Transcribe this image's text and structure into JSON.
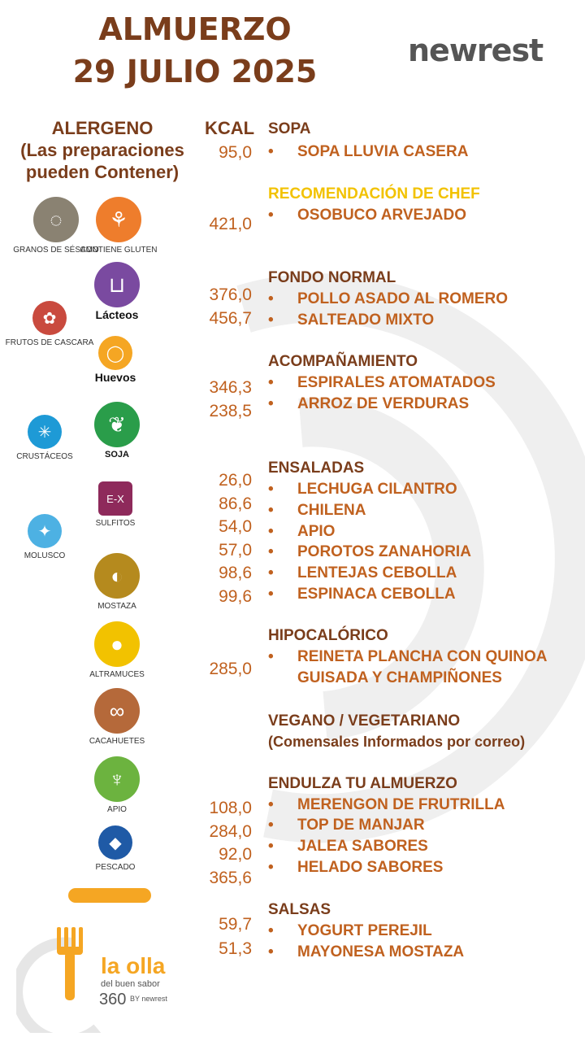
{
  "header": {
    "title_line1": "ALMUERZO",
    "title_line2": "29   JULIO 2025",
    "brand": "newrest"
  },
  "columns": {
    "alergeno_line1": "ALERGENO",
    "alergeno_line2": "(Las preparaciones",
    "alergeno_line3": "pueden Contener)",
    "kcal": "KCAL"
  },
  "menu": {
    "sopa": {
      "title": "SOPA",
      "items": [
        {
          "name": "SOPA LLUVIA CASERA",
          "kcal": "95,0"
        }
      ]
    },
    "chef": {
      "title": "RECOMENDACIÓN DE CHEF",
      "items": [
        {
          "name": "OSOBUCO ARVEJADO",
          "kcal": "421,0"
        }
      ]
    },
    "fondo": {
      "title": "FONDO NORMAL",
      "items": [
        {
          "name": "POLLO ASADO AL ROMERO",
          "kcal": "376,0"
        },
        {
          "name": "SALTEADO MIXTO",
          "kcal": "456,7"
        }
      ]
    },
    "acomp": {
      "title": "ACOMPAÑAMIENTO",
      "items": [
        {
          "name": "ESPIRALES ATOMATADOS",
          "kcal": "346,3"
        },
        {
          "name": "ARROZ DE VERDURAS",
          "kcal": "238,5"
        }
      ]
    },
    "ensaladas": {
      "title": "ENSALADAS",
      "items": [
        {
          "name": "LECHUGA CILANTRO",
          "kcal": "26,0"
        },
        {
          "name": "CHILENA",
          "kcal": "86,6"
        },
        {
          "name": "APIO",
          "kcal": "54,0"
        },
        {
          "name": "POROTOS ZANAHORIA",
          "kcal": "57,0"
        },
        {
          "name": "LENTEJAS CEBOLLA",
          "kcal": "98,6"
        },
        {
          "name": "ESPINACA CEBOLLA",
          "kcal": "99,6"
        }
      ]
    },
    "hipo": {
      "title": "HIPOCALÓRICO",
      "items": [
        {
          "name": "REINETA PLANCHA CON QUINOA",
          "name2": "GUISADA Y CHAMPIÑONES",
          "kcal": "285,0"
        }
      ]
    },
    "vegano": {
      "title": "VEGANO / VEGETARIANO",
      "note": "(Comensales Informados por correo)"
    },
    "postre": {
      "title": "ENDULZA TU ALMUERZO",
      "items": [
        {
          "name": "MERENGON DE FRUTRILLA",
          "kcal": "108,0"
        },
        {
          "name": "TOP DE MANJAR",
          "kcal": "284,0"
        },
        {
          "name": "JALEA SABORES",
          "kcal": "92,0"
        },
        {
          "name": "HELADO SABORES",
          "kcal": "365,6"
        }
      ]
    },
    "salsas": {
      "title": "SALSAS",
      "items": [
        {
          "name": "YOGURT  PEREJIL",
          "kcal": "59,7"
        },
        {
          "name": "MAYONESA MOSTAZA",
          "kcal": "51,3"
        }
      ]
    },
    "bullet": "•"
  },
  "allergens": [
    {
      "label": "GRANOS DE SÉSAMO",
      "icon": "sesame-icon",
      "color": "#8a8272"
    },
    {
      "label": "CONTIENE GLUTEN",
      "icon": "wheat-icon",
      "color": "#ee7d2c"
    },
    {
      "label": "Lácteos",
      "icon": "milk-jug-icon",
      "color": "#7a4aa0"
    },
    {
      "label": "FRUTOS DE CASCARA",
      "icon": "walnut-icon",
      "color": "#c94a3e"
    },
    {
      "label": "Huevos",
      "icon": "egg-icon",
      "color": "#f5a623"
    },
    {
      "label": "CRUSTÁCEOS",
      "icon": "crab-icon",
      "color": "#1e9ad6"
    },
    {
      "label": "SOJA",
      "icon": "soy-leaf-icon",
      "color": "#2a9d4a"
    },
    {
      "label": "SULFITOS",
      "icon": "chemical-icon",
      "color": "#8e2a5b"
    },
    {
      "label": "MOLUSCO",
      "icon": "shell-icon",
      "color": "#4db1e3"
    },
    {
      "label": "MOSTAZA",
      "icon": "mustard-icon",
      "color": "#b58a1e"
    },
    {
      "label": "ALTRAMUCES",
      "icon": "lupin-icon",
      "color": "#f2c200"
    },
    {
      "label": "CACAHUETES",
      "icon": "peanut-icon",
      "color": "#b5693a"
    },
    {
      "label": "APIO",
      "icon": "celery-icon",
      "color": "#6cb33f"
    },
    {
      "label": "PESCADO",
      "icon": "fish-icon",
      "color": "#1f5aa6"
    }
  ],
  "footer_logo": {
    "name": "la olla",
    "tagline": "del buen sabor",
    "badge": "360",
    "by": "BY newrest",
    "color": "#f5a623"
  }
}
